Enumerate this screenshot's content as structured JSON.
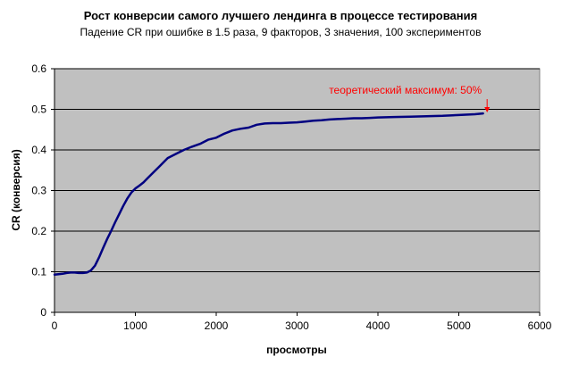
{
  "chart_data": {
    "type": "line",
    "title": "Рост конверсии самого лучшего лендинга в процессе тестирования",
    "subtitle": "Падение CR при ошибке в 1.5 раза, 9 факторов, 3 значения, 100 экспериментов",
    "xlabel": "просмотры",
    "ylabel": "CR (конверсия)",
    "xlim": [
      0,
      6000
    ],
    "ylim": [
      0,
      0.6
    ],
    "xticks": [
      "0",
      "1000",
      "2000",
      "3000",
      "4000",
      "5000",
      "6000"
    ],
    "yticks": [
      "0",
      "0.1",
      "0.2",
      "0.3",
      "0.4",
      "0.5",
      "0.6"
    ],
    "grid": "horizontal",
    "plot_background": "#c0c0c0",
    "line_color": "#000080",
    "annotation": {
      "text": "теоретический максимум: 50%",
      "color": "#ff0000",
      "x": 5350,
      "y": 0.49
    },
    "series": [
      {
        "x": [
          0,
          50,
          100,
          150,
          200,
          250,
          300,
          350,
          400,
          450,
          500,
          550,
          600,
          650,
          700,
          750,
          800,
          850,
          900,
          950,
          1000,
          1050,
          1100,
          1150,
          1200,
          1300,
          1400,
          1500,
          1600,
          1700,
          1800,
          1900,
          2000,
          2100,
          2200,
          2300,
          2400,
          2500,
          2600,
          2700,
          2800,
          2900,
          3000,
          3100,
          3200,
          3300,
          3400,
          3500,
          3600,
          3700,
          3800,
          3900,
          4000,
          4200,
          4400,
          4600,
          4800,
          5000,
          5200,
          5300
        ],
        "values": [
          0.093,
          0.094,
          0.095,
          0.097,
          0.098,
          0.098,
          0.097,
          0.097,
          0.098,
          0.103,
          0.115,
          0.135,
          0.158,
          0.18,
          0.2,
          0.222,
          0.242,
          0.262,
          0.28,
          0.295,
          0.305,
          0.312,
          0.32,
          0.33,
          0.34,
          0.36,
          0.38,
          0.39,
          0.4,
          0.408,
          0.415,
          0.425,
          0.43,
          0.44,
          0.448,
          0.452,
          0.455,
          0.462,
          0.465,
          0.466,
          0.466,
          0.467,
          0.468,
          0.47,
          0.472,
          0.473,
          0.475,
          0.476,
          0.477,
          0.478,
          0.478,
          0.479,
          0.48,
          0.481,
          0.482,
          0.483,
          0.484,
          0.486,
          0.488,
          0.49
        ]
      }
    ]
  }
}
